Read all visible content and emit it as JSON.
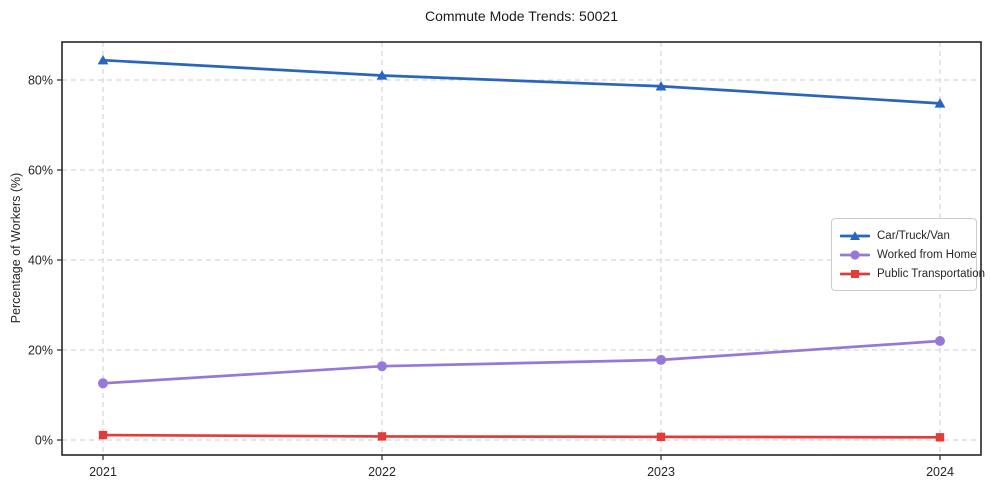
{
  "title": "Commute Mode Trends: 50021",
  "axes": {
    "y_label": "Percentage of Workers (%)",
    "y_ticks": [
      "0%",
      "20%",
      "40%",
      "60%",
      "80%"
    ],
    "x_ticks": [
      "2021",
      "2022",
      "2023",
      "2024"
    ]
  },
  "legend": {
    "position": "center-right",
    "items": [
      "Car/Truck/Van",
      "Worked from Home",
      "Public Transportation"
    ]
  },
  "colors": {
    "car": "#2a65bd",
    "home": "#9678d8",
    "transit": "#e03c3c",
    "gridline": "#cdcdcd",
    "spine": "#262626",
    "text": "#262626"
  },
  "chart_data": {
    "type": "line",
    "title": "Commute Mode Trends: 50021",
    "xlabel": "",
    "ylabel": "Percentage of Workers (%)",
    "x": [
      2021,
      2022,
      2023,
      2024
    ],
    "series": [
      {
        "name": "Car/Truck/Van",
        "values": [
          84.4,
          81.0,
          78.6,
          74.8
        ],
        "color": "#2a65bd",
        "marker": "triangle"
      },
      {
        "name": "Worked from Home",
        "values": [
          12.6,
          16.4,
          17.8,
          22.0
        ],
        "color": "#9678d8",
        "marker": "circle"
      },
      {
        "name": "Public Transportation",
        "values": [
          1.1,
          0.8,
          0.7,
          0.6
        ],
        "color": "#e03c3c",
        "marker": "square"
      }
    ],
    "ylim": [
      -3.33,
      88.44
    ],
    "y_tick_values": [
      0,
      20,
      40,
      60,
      80
    ],
    "grid": true,
    "grid_style": "dashed",
    "legend_position": "center-right"
  }
}
